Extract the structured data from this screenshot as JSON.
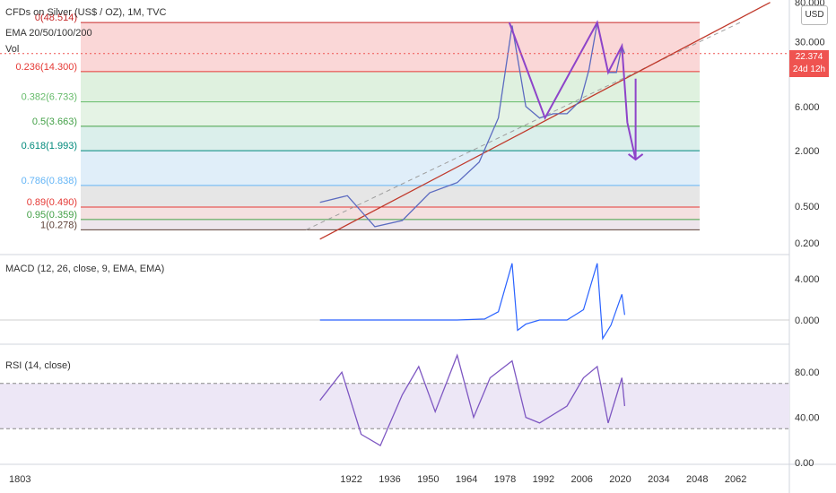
{
  "header": {
    "title": "CFDs on Silver (US$ / OZ), 1M, TVC",
    "ema": "EMA 20/50/100/200",
    "vol": "Vol"
  },
  "currency_button": "USD",
  "last_price": {
    "value": "22.374",
    "countdown": "24d 12h"
  },
  "fib_levels": [
    {
      "label": "0(48.514)",
      "value": 48.514,
      "color": "#c62828"
    },
    {
      "label": "0.236(14.300)",
      "value": 14.3,
      "color": "#e53935"
    },
    {
      "label": "0.382(6.733)",
      "value": 6.733,
      "color": "#66bb6a"
    },
    {
      "label": "0.5(3.663)",
      "value": 3.663,
      "color": "#43a047"
    },
    {
      "label": "0.618(1.993)",
      "value": 1.993,
      "color": "#00897b"
    },
    {
      "label": "0.786(0.838)",
      "value": 0.838,
      "color": "#64b5f6"
    },
    {
      "label": "0.89(0.490)",
      "value": 0.49,
      "color": "#e53935"
    },
    {
      "label": "0.95(0.359)",
      "value": 0.359,
      "color": "#43a047"
    },
    {
      "label": "1(0.278)",
      "value": 0.278,
      "color": "#5d4037"
    }
  ],
  "price_axis_ticks": [
    "80.000",
    "30.000",
    "6.000",
    "2.000",
    "0.500",
    "0.200"
  ],
  "macd": {
    "label": "MACD (12, 26, close, 9, EMA, EMA)",
    "ticks": [
      "4.000",
      "0.000"
    ]
  },
  "rsi": {
    "label": "RSI (14, close)",
    "ticks": [
      "80.00",
      "40.00",
      "0.00"
    ]
  },
  "time_axis": [
    "1803",
    "1922",
    "1936",
    "1950",
    "1964",
    "1978",
    "1992",
    "2006",
    "2020",
    "2034",
    "2048",
    "2062"
  ],
  "colors": {
    "pattern": "#8e44c9",
    "trendline": "#c0392b",
    "rsi_line": "#7e57c2",
    "rsi_band": "#ede7f6"
  },
  "chart_data": [
    {
      "type": "line",
      "title": "CFDs on Silver (US$ / OZ), 1M, TVC",
      "scale": "log",
      "x": [
        1910,
        1920,
        1930,
        1940,
        1950,
        1960,
        1968,
        1975,
        1980,
        1985,
        1990,
        1995,
        2000,
        2005,
        2008,
        2011,
        2015,
        2018,
        2020,
        2021
      ],
      "series": [
        {
          "values": [
            0.55,
            0.65,
            0.3,
            0.35,
            0.7,
            0.9,
            1.5,
            4.5,
            45,
            6,
            4.5,
            5,
            5,
            7,
            15,
            48,
            14,
            14,
            27,
            22.4
          ]
        }
      ],
      "ylim": [
        0.15,
        85
      ],
      "grid": false
    },
    {
      "type": "line",
      "title": "MACD (12, 26, close, 9, EMA, EMA)",
      "x": [
        1910,
        1960,
        1970,
        1975,
        1980,
        1982,
        1985,
        1990,
        2000,
        2006,
        2011,
        2013,
        2016,
        2020,
        2021
      ],
      "series": [
        {
          "values": [
            0,
            0,
            0.1,
            0.8,
            5.5,
            -1.0,
            -0.4,
            0,
            0,
            1.0,
            5.5,
            -1.8,
            -0.5,
            2.5,
            0.5
          ]
        }
      ],
      "ylim": [
        -2,
        6
      ]
    },
    {
      "type": "line",
      "title": "RSI (14, close)",
      "x": [
        1910,
        1918,
        1925,
        1932,
        1940,
        1946,
        1952,
        1960,
        1966,
        1972,
        1980,
        1985,
        1990,
        2000,
        2006,
        2011,
        2015,
        2020,
        2021
      ],
      "series": [
        {
          "values": [
            55,
            80,
            25,
            15,
            60,
            85,
            45,
            95,
            40,
            75,
            90,
            40,
            35,
            50,
            75,
            85,
            35,
            75,
            50
          ]
        }
      ],
      "ylim": [
        0,
        100
      ]
    }
  ]
}
